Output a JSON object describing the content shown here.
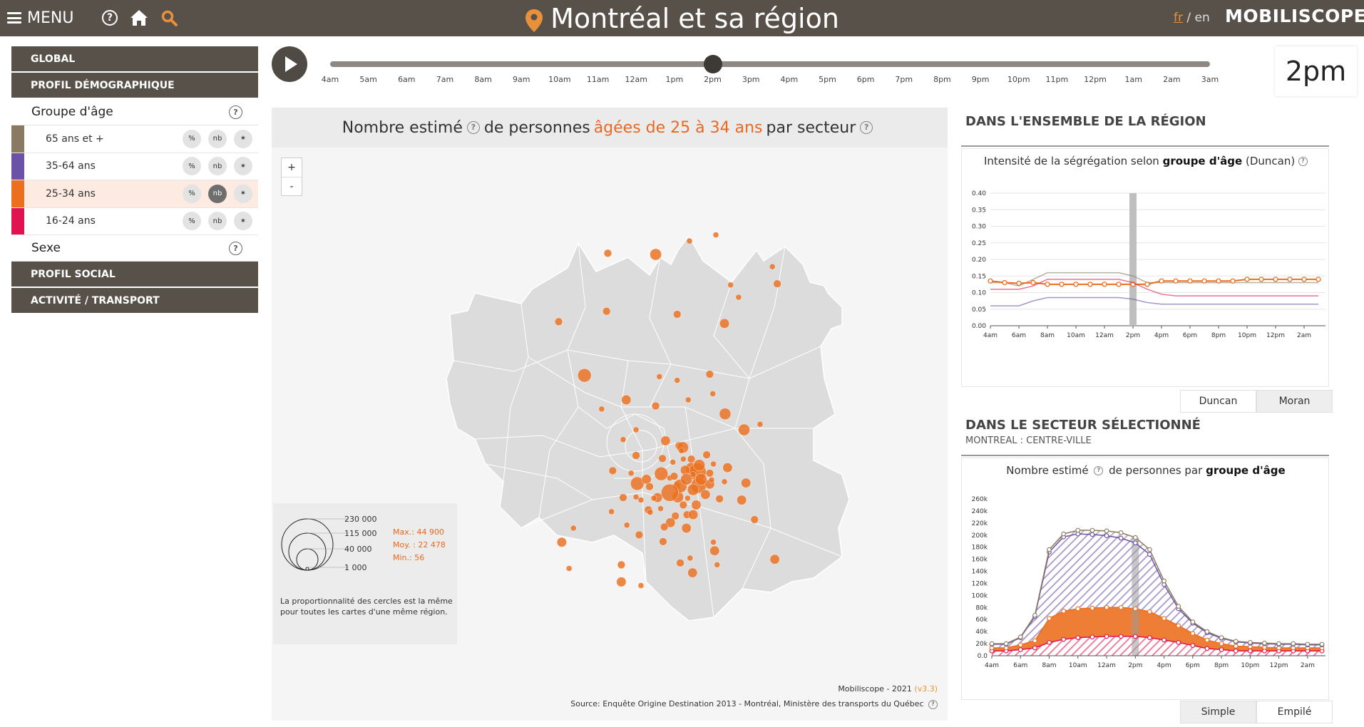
{
  "header": {
    "menu_label": "MENU",
    "title": "Montréal et sa région",
    "lang_fr": "fr",
    "lang_sep": "/",
    "lang_en": "en",
    "brand": "MOBILISCOPE",
    "icons": [
      "hamburger-icon",
      "help-icon",
      "home-icon",
      "search-icon",
      "location-pin-icon"
    ]
  },
  "sidebar": {
    "sections": [
      {
        "label": "GLOBAL"
      },
      {
        "label": "PROFIL DÉMOGRAPHIQUE"
      }
    ],
    "group_age": {
      "label": "Groupe d'âge",
      "help": "?",
      "items": [
        {
          "label": "65 ans et +",
          "color": "#8b7a63",
          "pct": "%",
          "nb": "nb",
          "star": "✶"
        },
        {
          "label": "35-64 ans",
          "color": "#6b52a8",
          "pct": "%",
          "nb": "nb",
          "star": "✶"
        },
        {
          "label": "25-34 ans",
          "color": "#ec6f1f",
          "pct": "%",
          "nb": "nb",
          "star": "✶",
          "selected": true
        },
        {
          "label": "16-24 ans",
          "color": "#e0124f",
          "pct": "%",
          "nb": "nb",
          "star": "✶"
        }
      ]
    },
    "sexe": {
      "label": "Sexe",
      "help": "?"
    },
    "bottom_sections": [
      {
        "label": "PROFIL SOCIAL"
      },
      {
        "label": "ACTIVITÉ / TRANSPORT"
      }
    ]
  },
  "timeline": {
    "labels": [
      "4am",
      "5am",
      "6am",
      "7am",
      "8am",
      "9am",
      "10am",
      "11am",
      "12am",
      "1pm",
      "2pm",
      "3pm",
      "4pm",
      "5pm",
      "6pm",
      "7pm",
      "8pm",
      "9pm",
      "10pm",
      "11pm",
      "12pm",
      "1am",
      "2am",
      "3am"
    ],
    "current_index": 10,
    "current": "2pm"
  },
  "map": {
    "title_pre": "Nombre estimé",
    "title_mid": "de personnes",
    "title_highlight": "âgées de 25 à 34 ans",
    "title_post": "par secteur",
    "help": "?",
    "zoom_in": "+",
    "zoom_out": "-",
    "legend": {
      "circle_values": [
        "230 000",
        "115 000",
        "40 000",
        "1 000"
      ],
      "max": "Max.: 44 900",
      "moy": "Moy. : 22 478",
      "min": "Min.: 56",
      "note": "La proportionnalité des cercles est la même pour toutes les cartes d'une même région."
    },
    "credit_line1": "Mobiliscope - 2021",
    "credit_version": "(v3.3)",
    "credit_line2": "Source: Enquête Origine Destination 2013 - Montréal, Ministère des transports du Québec"
  },
  "region_panel": {
    "title": "DANS L'ENSEMBLE DE LA RÉGION",
    "subtitle_pre": "Intensité de la ségrégation selon",
    "subtitle_bold": "groupe d'âge",
    "subtitle_post": "(Duncan)",
    "tabs": [
      "Duncan",
      "Moran"
    ],
    "active_tab": 1
  },
  "sector_panel": {
    "title": "DANS LE SECTEUR SÉLECTIONNÉ",
    "sector": "MONTREAL : CENTRE-VILLE",
    "subtitle_pre": "Nombre estimé",
    "subtitle_mid": "de personnes par",
    "subtitle_bold": "groupe d'âge",
    "tabs": [
      "Simple",
      "Empilé"
    ],
    "active_tab": 0
  },
  "chart_data": [
    {
      "type": "line",
      "x": [
        "4am",
        "5am",
        "6am",
        "7am",
        "8am",
        "9am",
        "10am",
        "11am",
        "12am",
        "1pm",
        "2pm",
        "3pm",
        "4pm",
        "5pm",
        "6pm",
        "7pm",
        "8pm",
        "9pm",
        "10pm",
        "11pm",
        "12pm",
        "1am",
        "2am",
        "3am"
      ],
      "x_tick_labels": [
        "4am",
        "6am",
        "8am",
        "10am",
        "12am",
        "2pm",
        "4pm",
        "6pm",
        "8pm",
        "10pm",
        "12pm",
        "2am"
      ],
      "ylim": [
        0,
        0.4
      ],
      "y_ticks": [
        "0.00",
        "0.05",
        "0.10",
        "0.15",
        "0.20",
        "0.25",
        "0.30",
        "0.35",
        "0.40"
      ],
      "highlight_x": "2pm",
      "series": [
        {
          "color": "#8b7a63",
          "values": [
            0.13,
            0.13,
            0.12,
            0.14,
            0.16,
            0.16,
            0.16,
            0.16,
            0.16,
            0.16,
            0.15,
            0.13,
            0.13,
            0.13,
            0.13,
            0.13,
            0.13,
            0.13,
            0.13,
            0.13,
            0.13,
            0.13,
            0.13,
            0.13
          ]
        },
        {
          "color": "#ec6f1f",
          "markers": true,
          "values": [
            0.135,
            0.13,
            0.128,
            0.13,
            0.125,
            0.125,
            0.125,
            0.125,
            0.125,
            0.125,
            0.125,
            0.125,
            0.135,
            0.135,
            0.135,
            0.135,
            0.135,
            0.135,
            0.14,
            0.14,
            0.14,
            0.14,
            0.14,
            0.14
          ]
        },
        {
          "color": "#e0124f",
          "values": [
            0.11,
            0.11,
            0.11,
            0.12,
            0.14,
            0.14,
            0.14,
            0.14,
            0.14,
            0.14,
            0.13,
            0.11,
            0.095,
            0.09,
            0.09,
            0.09,
            0.09,
            0.09,
            0.09,
            0.09,
            0.09,
            0.09,
            0.09,
            0.09
          ]
        },
        {
          "color": "#6b52a8",
          "values": [
            0.06,
            0.06,
            0.06,
            0.075,
            0.085,
            0.085,
            0.085,
            0.085,
            0.085,
            0.085,
            0.08,
            0.07,
            0.065,
            0.065,
            0.065,
            0.065,
            0.065,
            0.065,
            0.065,
            0.065,
            0.065,
            0.065,
            0.065,
            0.065
          ]
        }
      ]
    },
    {
      "type": "area",
      "stacked": true,
      "x": [
        "4am",
        "5am",
        "6am",
        "7am",
        "8am",
        "9am",
        "10am",
        "11am",
        "12am",
        "1pm",
        "2pm",
        "3pm",
        "4pm",
        "5pm",
        "6pm",
        "7pm",
        "8pm",
        "9pm",
        "10pm",
        "11pm",
        "12pm",
        "1am",
        "2am",
        "3am"
      ],
      "x_tick_labels": [
        "4am",
        "6am",
        "8am",
        "10am",
        "12am",
        "2pm",
        "4pm",
        "6pm",
        "8pm",
        "10pm",
        "12pm",
        "2am"
      ],
      "ylim": [
        0,
        260000
      ],
      "y_ticks": [
        "0.0",
        "20k",
        "40k",
        "60k",
        "80k",
        "100k",
        "120k",
        "140k",
        "160k",
        "180k",
        "200k",
        "220k",
        "240k",
        "260k"
      ],
      "highlight_x": "2pm",
      "series": [
        {
          "name": "16-24 ans",
          "color": "#e0124f",
          "values": [
            8000,
            8000,
            10000,
            13000,
            22000,
            27000,
            30000,
            31000,
            32000,
            32000,
            32000,
            30000,
            26000,
            22000,
            17000,
            12000,
            10000,
            8000,
            8000,
            8000,
            8000,
            8000,
            8000,
            8000
          ]
        },
        {
          "name": "25-34 ans",
          "color": "#ec6f1f",
          "values": [
            5000,
            5000,
            8000,
            12000,
            40000,
            47000,
            48000,
            48000,
            48000,
            48000,
            46000,
            43000,
            36000,
            28000,
            20000,
            14000,
            10000,
            8000,
            7000,
            6000,
            5000,
            5000,
            5000,
            5000
          ]
        },
        {
          "name": "35-64 ans",
          "color": "#6b52a8",
          "values": [
            6000,
            6000,
            12000,
            40000,
            110000,
            123000,
            124000,
            122000,
            119000,
            115000,
            109000,
            95000,
            56000,
            28000,
            17000,
            12000,
            9000,
            7000,
            6000,
            6000,
            6000,
            6000,
            5000,
            5000
          ]
        },
        {
          "name": "65 ans et +",
          "color": "#8b7a63",
          "values": [
            1000,
            1000,
            1000,
            2000,
            4000,
            5000,
            6000,
            7000,
            8000,
            9000,
            9000,
            8000,
            6000,
            4000,
            2000,
            2000,
            1000,
            1000,
            1000,
            1000,
            1000,
            1000,
            1000,
            1000
          ]
        }
      ]
    }
  ]
}
